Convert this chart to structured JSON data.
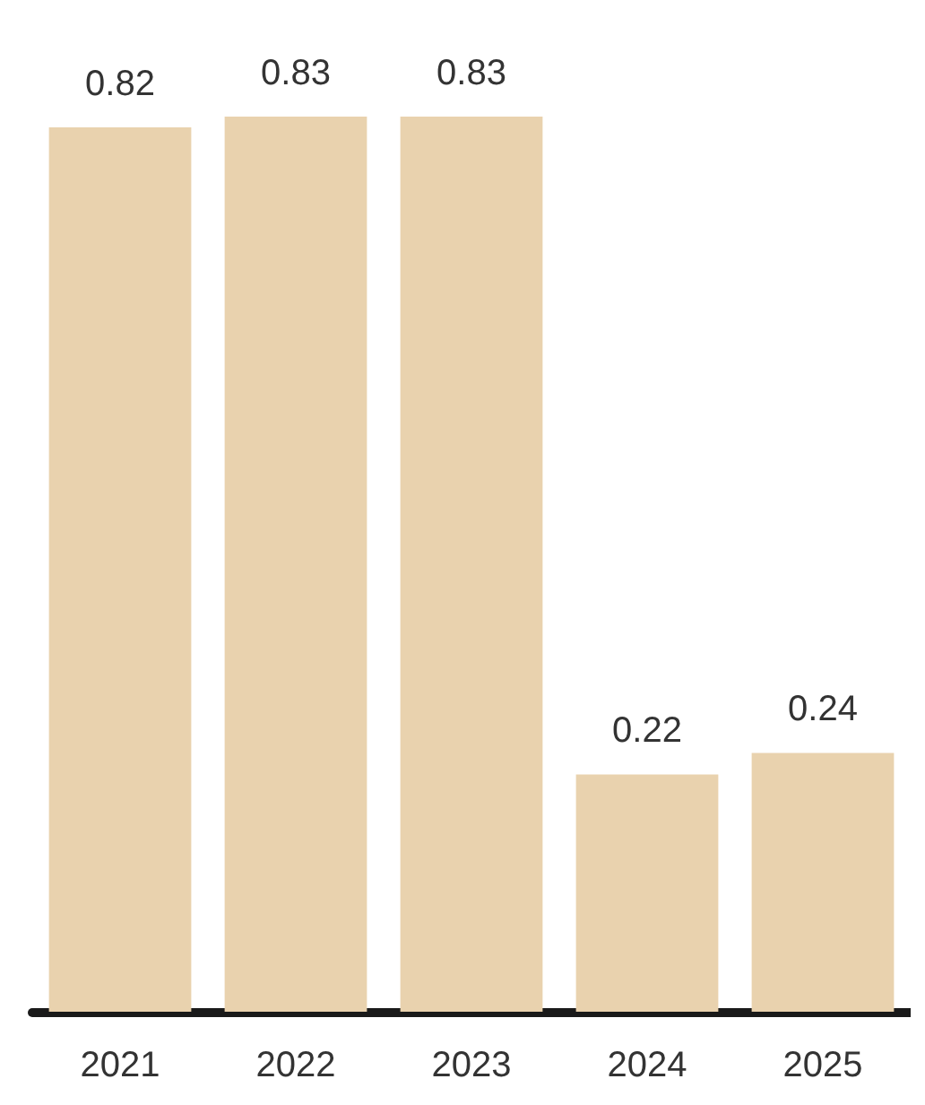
{
  "chart_data": {
    "type": "bar",
    "categories": [
      "2021",
      "2022",
      "2023",
      "2024",
      "2025"
    ],
    "values": [
      0.82,
      0.83,
      0.83,
      0.22,
      0.24
    ],
    "color": "#e9d2ae",
    "data_labels": true
  }
}
